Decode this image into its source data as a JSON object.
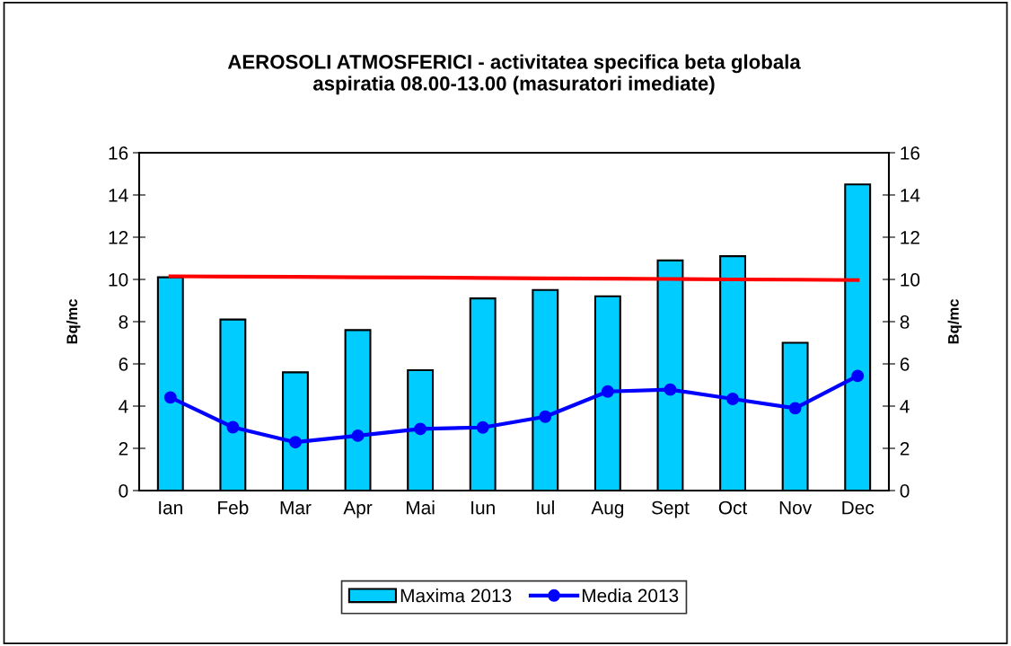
{
  "chart_data": {
    "type": "bar",
    "title": "AEROSOLI ATMOSFERICI - activitatea specifica beta globala\naspiratia 08.00-13.00 (masuratori imediate)",
    "ylabel": "Bq/mc",
    "y2label": "Bq/mc",
    "categories": [
      "Ian",
      "Feb",
      "Mar",
      "Apr",
      "Mai",
      "Iun",
      "Iul",
      "Aug",
      "Sept",
      "Oct",
      "Nov",
      "Dec"
    ],
    "series": [
      {
        "name": "Maxima 2013",
        "color": "#00ccff",
        "values": [
          10.1,
          8.1,
          5.6,
          7.6,
          5.7,
          9.1,
          9.5,
          9.2,
          10.9,
          11.1,
          7.0,
          14.5
        ]
      },
      {
        "name": "Media 2013",
        "type": "line",
        "color": "#0000ff",
        "marker": "circle",
        "values": [
          4.41,
          3.0,
          2.29,
          2.6,
          2.92,
          2.99,
          3.5,
          4.69,
          4.78,
          4.34,
          3.9,
          5.43
        ]
      },
      {
        "type": "line",
        "color": "#ff0000",
        "values": [
          10.15,
          10.13,
          10.12,
          10.1,
          10.09,
          10.07,
          10.05,
          10.04,
          10.02,
          10.0,
          9.99,
          9.97
        ]
      }
    ],
    "ylim": [
      0,
      16
    ],
    "yticks": [
      0,
      2,
      4,
      6,
      8,
      10,
      12,
      14,
      16
    ],
    "y2lim": [
      0,
      16
    ],
    "y2ticks": [
      0,
      2,
      4,
      6,
      8,
      10,
      12,
      14,
      16
    ],
    "grid": false,
    "legend": "bottom"
  }
}
